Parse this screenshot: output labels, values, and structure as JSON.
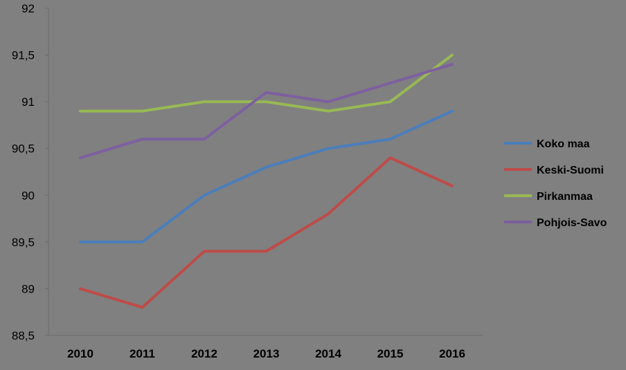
{
  "chart_data": {
    "type": "line",
    "title": "",
    "xlabel": "",
    "ylabel": "",
    "x": [
      "2010",
      "2011",
      "2012",
      "2013",
      "2014",
      "2015",
      "2016"
    ],
    "ylim": [
      88.5,
      92
    ],
    "y_ticks": [
      "88,5",
      "89",
      "89,5",
      "90",
      "90,5",
      "91",
      "91,5",
      "92"
    ],
    "y_tick_values": [
      88.5,
      89,
      89.5,
      90,
      90.5,
      91,
      91.5,
      92
    ],
    "grid": false,
    "legend_position": "right",
    "series": [
      {
        "name": "Koko maa",
        "color": "#4a7ebb",
        "values": [
          89.5,
          89.5,
          90.0,
          90.3,
          90.5,
          90.6,
          90.9
        ]
      },
      {
        "name": "Keski-Suomi",
        "color": "#be4b48",
        "values": [
          89.0,
          88.8,
          89.4,
          89.4,
          89.8,
          90.4,
          90.1
        ]
      },
      {
        "name": "Pirkanmaa",
        "color": "#98b954",
        "values": [
          90.9,
          90.9,
          91.0,
          91.0,
          90.9,
          91.0,
          91.5
        ]
      },
      {
        "name": "Pohjois-Savo",
        "color": "#7d5fa0",
        "values": [
          90.4,
          90.6,
          90.6,
          91.1,
          91.0,
          91.2,
          91.4
        ]
      }
    ]
  }
}
